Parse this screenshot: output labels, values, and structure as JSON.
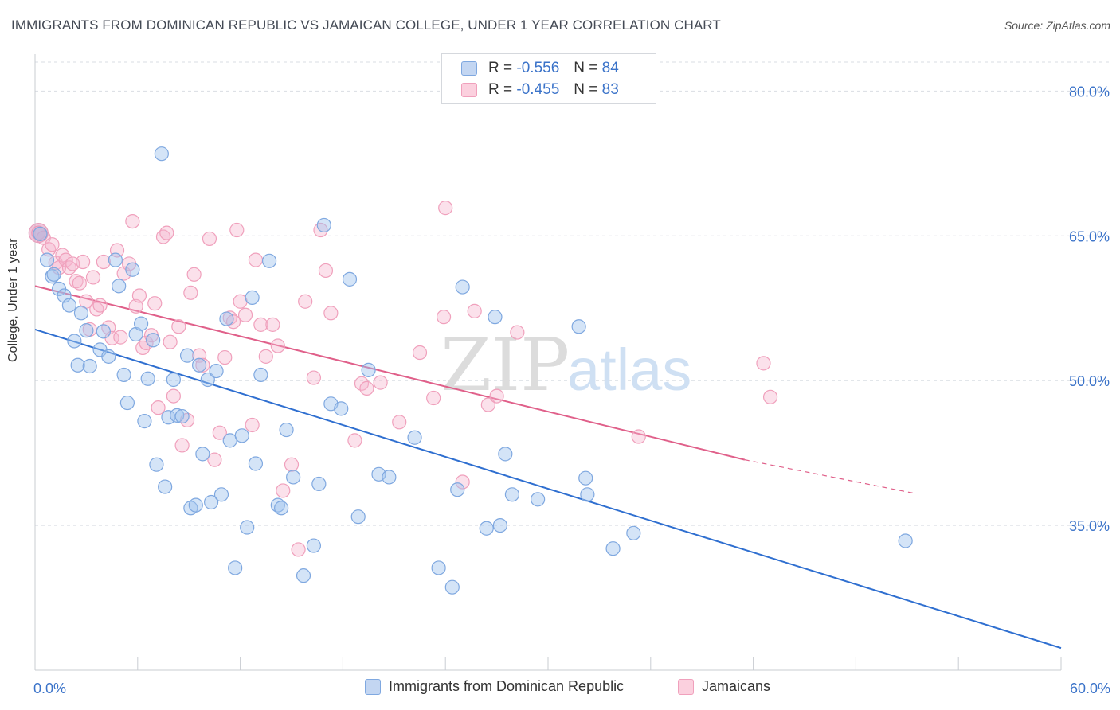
{
  "title": "IMMIGRANTS FROM DOMINICAN REPUBLIC VS JAMAICAN COLLEGE, UNDER 1 YEAR CORRELATION CHART",
  "source": "Source: ZipAtlas.com",
  "watermark": {
    "zip": "ZIP",
    "atlas": "atlas"
  },
  "legend": {
    "rows": [
      {
        "r_label": "R =",
        "r_value": "-0.556",
        "n_label": "N =",
        "n_value": "84"
      },
      {
        "r_label": "R =",
        "r_value": "-0.455",
        "n_label": "N =",
        "n_value": "83"
      }
    ]
  },
  "bottom_legend": {
    "series1": "Immigrants from Dominican Republic",
    "series2": "Jamaicans"
  },
  "colors": {
    "blue": "#7fa8e0",
    "blue_line": "#2f6fd0",
    "pink": "#f0a0bc",
    "pink_line": "#e0608a",
    "tick_text": "#3b73c9"
  },
  "chart_data": {
    "type": "scatter",
    "title": "IMMIGRANTS FROM DOMINICAN REPUBLIC VS JAMAICAN COLLEGE, UNDER 1 YEAR CORRELATION CHART",
    "xlabel": "",
    "ylabel": "College, Under 1 year",
    "xlim": [
      0,
      60
    ],
    "ylim": [
      20,
      83
    ],
    "x_tick_labels": [
      "0.0%",
      "60.0%"
    ],
    "y_ticks": [
      35,
      50,
      65,
      80
    ],
    "y_tick_labels": [
      "35.0%",
      "50.0%",
      "65.0%",
      "80.0%"
    ],
    "grid": "horizontal dashed",
    "series": [
      {
        "name": "Immigrants from Dominican Republic",
        "color": "blue",
        "trend": {
          "x": [
            0,
            60
          ],
          "y": [
            55.3,
            22.3
          ]
        },
        "points": [
          [
            0.3,
            65.2
          ],
          [
            0.7,
            62.5
          ],
          [
            1.0,
            60.8
          ],
          [
            1.1,
            61.0
          ],
          [
            1.4,
            59.5
          ],
          [
            1.7,
            58.8
          ],
          [
            2.0,
            57.8
          ],
          [
            2.3,
            54.1
          ],
          [
            2.5,
            51.6
          ],
          [
            2.7,
            57.0
          ],
          [
            3.0,
            55.2
          ],
          [
            3.2,
            51.5
          ],
          [
            3.8,
            53.2
          ],
          [
            4.0,
            55.1
          ],
          [
            4.3,
            52.5
          ],
          [
            4.7,
            62.5
          ],
          [
            4.9,
            59.8
          ],
          [
            5.2,
            50.6
          ],
          [
            5.4,
            47.7
          ],
          [
            5.7,
            61.5
          ],
          [
            5.9,
            54.8
          ],
          [
            6.2,
            55.9
          ],
          [
            6.4,
            45.8
          ],
          [
            6.6,
            50.2
          ],
          [
            6.9,
            54.2
          ],
          [
            7.1,
            41.3
          ],
          [
            7.4,
            73.5
          ],
          [
            7.6,
            39.0
          ],
          [
            7.8,
            46.2
          ],
          [
            8.1,
            50.1
          ],
          [
            8.3,
            46.4
          ],
          [
            8.6,
            46.3
          ],
          [
            8.9,
            52.6
          ],
          [
            9.1,
            36.8
          ],
          [
            9.4,
            37.1
          ],
          [
            9.6,
            51.6
          ],
          [
            9.8,
            42.4
          ],
          [
            10.1,
            50.1
          ],
          [
            10.3,
            37.4
          ],
          [
            10.6,
            51.0
          ],
          [
            10.9,
            38.2
          ],
          [
            11.2,
            56.4
          ],
          [
            11.4,
            43.8
          ],
          [
            11.7,
            30.6
          ],
          [
            12.1,
            44.3
          ],
          [
            12.4,
            34.8
          ],
          [
            12.7,
            58.6
          ],
          [
            12.9,
            41.4
          ],
          [
            13.2,
            50.6
          ],
          [
            13.7,
            62.4
          ],
          [
            14.2,
            37.1
          ],
          [
            14.4,
            36.8
          ],
          [
            14.7,
            44.9
          ],
          [
            15.1,
            40.0
          ],
          [
            15.7,
            29.8
          ],
          [
            16.3,
            32.9
          ],
          [
            16.6,
            39.3
          ],
          [
            16.9,
            66.1
          ],
          [
            17.3,
            47.6
          ],
          [
            17.9,
            47.1
          ],
          [
            18.4,
            60.5
          ],
          [
            18.9,
            35.9
          ],
          [
            19.5,
            51.1
          ],
          [
            20.1,
            40.3
          ],
          [
            20.7,
            40.0
          ],
          [
            22.2,
            44.1
          ],
          [
            23.6,
            30.6
          ],
          [
            24.4,
            28.6
          ],
          [
            24.7,
            38.7
          ],
          [
            25.0,
            59.7
          ],
          [
            26.4,
            34.7
          ],
          [
            26.9,
            56.6
          ],
          [
            27.2,
            35.0
          ],
          [
            27.5,
            42.4
          ],
          [
            27.9,
            38.2
          ],
          [
            29.4,
            37.7
          ],
          [
            31.8,
            55.6
          ],
          [
            32.2,
            39.9
          ],
          [
            32.3,
            38.2
          ],
          [
            33.8,
            32.6
          ],
          [
            35.0,
            34.2
          ],
          [
            50.9,
            33.4
          ]
        ]
      },
      {
        "name": "Jamaicans",
        "color": "pink",
        "trend": {
          "x": [
            0,
            41.5
          ],
          "y": [
            59.8,
            41.8
          ]
        },
        "trend_dashed": {
          "x": [
            41.5,
            51.5
          ],
          "y": [
            41.8,
            38.3
          ]
        },
        "points": [
          [
            0.2,
            65.3
          ],
          [
            0.5,
            64.8
          ],
          [
            0.8,
            63.6
          ],
          [
            1.0,
            64.1
          ],
          [
            1.2,
            62.2
          ],
          [
            1.4,
            61.7
          ],
          [
            1.6,
            63.0
          ],
          [
            1.8,
            62.5
          ],
          [
            2.0,
            61.7
          ],
          [
            2.2,
            62.1
          ],
          [
            2.4,
            60.3
          ],
          [
            2.6,
            60.1
          ],
          [
            2.8,
            62.3
          ],
          [
            3.0,
            58.2
          ],
          [
            3.2,
            55.3
          ],
          [
            3.4,
            60.7
          ],
          [
            3.6,
            57.4
          ],
          [
            3.8,
            57.8
          ],
          [
            4.0,
            62.3
          ],
          [
            4.3,
            55.5
          ],
          [
            4.5,
            54.4
          ],
          [
            4.8,
            63.5
          ],
          [
            5.0,
            54.5
          ],
          [
            5.2,
            61.1
          ],
          [
            5.5,
            62.1
          ],
          [
            5.7,
            66.5
          ],
          [
            5.9,
            57.7
          ],
          [
            6.1,
            58.8
          ],
          [
            6.3,
            53.4
          ],
          [
            6.5,
            53.9
          ],
          [
            6.8,
            54.7
          ],
          [
            7.0,
            58.0
          ],
          [
            7.2,
            47.2
          ],
          [
            7.5,
            64.9
          ],
          [
            7.7,
            65.3
          ],
          [
            7.9,
            54.0
          ],
          [
            8.1,
            48.4
          ],
          [
            8.4,
            55.6
          ],
          [
            8.6,
            43.3
          ],
          [
            8.9,
            45.9
          ],
          [
            9.1,
            59.1
          ],
          [
            9.3,
            61.0
          ],
          [
            9.6,
            52.6
          ],
          [
            9.8,
            51.6
          ],
          [
            10.2,
            64.7
          ],
          [
            10.5,
            41.8
          ],
          [
            10.8,
            44.6
          ],
          [
            11.1,
            52.4
          ],
          [
            11.4,
            56.5
          ],
          [
            11.6,
            56.1
          ],
          [
            11.8,
            65.6
          ],
          [
            12.0,
            58.2
          ],
          [
            12.3,
            56.8
          ],
          [
            12.7,
            45.4
          ],
          [
            12.9,
            62.5
          ],
          [
            13.2,
            55.8
          ],
          [
            13.5,
            52.5
          ],
          [
            13.9,
            55.8
          ],
          [
            14.2,
            53.6
          ],
          [
            14.5,
            38.6
          ],
          [
            15.0,
            41.3
          ],
          [
            15.4,
            32.5
          ],
          [
            15.8,
            58.2
          ],
          [
            16.3,
            50.3
          ],
          [
            16.7,
            65.6
          ],
          [
            17.0,
            61.4
          ],
          [
            17.3,
            57.0
          ],
          [
            18.7,
            43.8
          ],
          [
            19.1,
            49.7
          ],
          [
            19.4,
            49.2
          ],
          [
            20.2,
            49.8
          ],
          [
            21.3,
            45.7
          ],
          [
            22.5,
            52.9
          ],
          [
            23.3,
            48.2
          ],
          [
            23.9,
            56.6
          ],
          [
            24.0,
            67.9
          ],
          [
            25.0,
            39.5
          ],
          [
            25.7,
            57.2
          ],
          [
            26.5,
            47.5
          ],
          [
            27.0,
            48.4
          ],
          [
            28.2,
            55.0
          ],
          [
            35.3,
            44.2
          ],
          [
            42.6,
            51.8
          ],
          [
            43.0,
            48.3
          ]
        ]
      }
    ]
  }
}
